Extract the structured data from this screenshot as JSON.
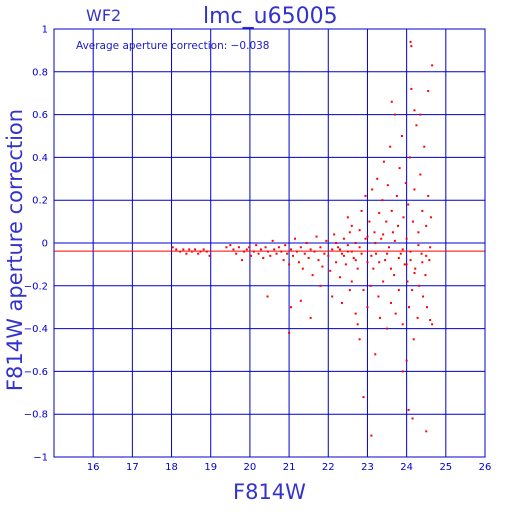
{
  "chart_data": {
    "type": "scatter",
    "title": "lmc_u65005",
    "panel_label": "WF2",
    "annotation": "Average aperture correction: −0.038",
    "xlabel": "F814W",
    "ylabel": "F814W aperture correction",
    "xlim": [
      15,
      26
    ],
    "ylim": [
      -1,
      1
    ],
    "x_ticks": [
      16,
      17,
      18,
      19,
      20,
      21,
      22,
      23,
      24,
      25,
      26
    ],
    "y_ticks": [
      1,
      0.8,
      0.6,
      0.4,
      0.2,
      0,
      -0.2,
      -0.4,
      -0.6,
      -0.8,
      -1
    ],
    "y_tick_labels": [
      "1",
      "0.8",
      "0.6",
      "0.4",
      "0.2",
      "0",
      "−0.2",
      "−0.4",
      "−0.6",
      "−0.8",
      "−1"
    ],
    "grid": true,
    "average_line": -0.038,
    "zero_line": 0,
    "colors": {
      "axes": "#0000cc",
      "points": "#ff0000",
      "average_line": "#ff0000",
      "zero_line": "#0000cc"
    },
    "points": [
      [
        18.03,
        -0.02
      ],
      [
        18.12,
        -0.03
      ],
      [
        18.22,
        -0.04
      ],
      [
        18.3,
        -0.03
      ],
      [
        18.38,
        -0.05
      ],
      [
        18.45,
        -0.03
      ],
      [
        18.52,
        -0.04
      ],
      [
        18.6,
        -0.03
      ],
      [
        18.68,
        -0.05
      ],
      [
        18.74,
        -0.04
      ],
      [
        18.82,
        -0.03
      ],
      [
        18.9,
        -0.04
      ],
      [
        18.97,
        -0.06
      ],
      [
        19.4,
        -0.02
      ],
      [
        19.5,
        -0.01
      ],
      [
        19.58,
        -0.03
      ],
      [
        19.65,
        -0.05
      ],
      [
        19.72,
        -0.02
      ],
      [
        19.8,
        -0.08
      ],
      [
        19.85,
        -0.04
      ],
      [
        19.92,
        -0.03
      ],
      [
        19.98,
        -0.02
      ],
      [
        20.03,
        -0.06
      ],
      [
        20.1,
        -0.04
      ],
      [
        20.16,
        -0.01
      ],
      [
        20.22,
        -0.05
      ],
      [
        20.28,
        -0.03
      ],
      [
        20.34,
        -0.07
      ],
      [
        20.4,
        -0.02
      ],
      [
        20.46,
        -0.04
      ],
      [
        20.52,
        -0.06
      ],
      [
        20.58,
        0.01
      ],
      [
        20.62,
        -0.03
      ],
      [
        20.68,
        -0.05
      ],
      [
        20.74,
        -0.02
      ],
      [
        20.8,
        -0.04
      ],
      [
        20.86,
        -0.08
      ],
      [
        20.9,
        -0.01
      ],
      [
        20.95,
        -0.05
      ],
      [
        21.0,
        -0.1
      ],
      [
        21.05,
        -0.03
      ],
      [
        21.1,
        -0.06
      ],
      [
        21.15,
        0.02
      ],
      [
        21.2,
        -0.04
      ],
      [
        21.25,
        -0.09
      ],
      [
        21.3,
        -0.02
      ],
      [
        21.35,
        -0.12
      ],
      [
        21.4,
        -0.05
      ],
      [
        21.45,
        0.0
      ],
      [
        21.5,
        -0.07
      ],
      [
        21.55,
        -0.03
      ],
      [
        21.6,
        -0.15
      ],
      [
        21.65,
        -0.04
      ],
      [
        21.7,
        0.03
      ],
      [
        21.75,
        -0.08
      ],
      [
        21.8,
        -0.02
      ],
      [
        21.85,
        -0.11
      ],
      [
        21.9,
        -0.05
      ],
      [
        21.95,
        0.01
      ],
      [
        22.0,
        -0.06
      ],
      [
        22.05,
        -0.13
      ],
      [
        22.1,
        -0.03
      ],
      [
        22.15,
        0.04
      ],
      [
        22.2,
        -0.09
      ],
      [
        22.25,
        -0.02
      ],
      [
        22.3,
        -0.16
      ],
      [
        22.35,
        -0.05
      ],
      [
        22.4,
        0.02
      ],
      [
        22.45,
        -0.1
      ],
      [
        22.5,
        -0.04
      ],
      [
        22.55,
        0.05
      ],
      [
        22.6,
        -0.18
      ],
      [
        22.65,
        -0.07
      ],
      [
        22.7,
        0.0
      ],
      [
        22.75,
        -0.12
      ],
      [
        22.8,
        0.06
      ],
      [
        22.85,
        -0.05
      ],
      [
        22.9,
        -0.22
      ],
      [
        22.95,
        0.02
      ],
      [
        23.0,
        -0.09
      ],
      [
        20.45,
        -0.25
      ],
      [
        21.05,
        -0.3
      ],
      [
        21.0,
        -0.42
      ],
      [
        21.3,
        -0.27
      ],
      [
        21.55,
        -0.35
      ],
      [
        21.8,
        -0.2
      ],
      [
        22.1,
        -0.25
      ],
      [
        22.35,
        -0.28
      ],
      [
        22.55,
        -0.22
      ],
      [
        22.7,
        -0.33
      ],
      [
        22.75,
        -0.38
      ],
      [
        22.8,
        -0.45
      ],
      [
        22.5,
        0.12
      ],
      [
        22.6,
        0.08
      ],
      [
        22.85,
        0.15
      ],
      [
        22.95,
        0.22
      ],
      [
        23.0,
        -0.3
      ],
      [
        23.05,
        0.1
      ],
      [
        23.08,
        -0.2
      ],
      [
        23.12,
        0.25
      ],
      [
        23.15,
        -0.12
      ],
      [
        23.18,
        0.05
      ],
      [
        23.22,
        -0.05
      ],
      [
        23.25,
        0.3
      ],
      [
        23.28,
        -0.25
      ],
      [
        23.3,
        0.14
      ],
      [
        23.32,
        -0.35
      ],
      [
        23.35,
        0.02
      ],
      [
        23.38,
        0.2
      ],
      [
        23.4,
        -0.18
      ],
      [
        23.42,
        0.38
      ],
      [
        23.45,
        -0.08
      ],
      [
        23.48,
        0.1
      ],
      [
        23.5,
        -0.4
      ],
      [
        23.52,
        0.27
      ],
      [
        23.55,
        -0.02
      ],
      [
        23.58,
        0.45
      ],
      [
        23.6,
        -0.28
      ],
      [
        23.62,
        0.15
      ],
      [
        23.65,
        0.05
      ],
      [
        23.68,
        -0.15
      ],
      [
        23.7,
        0.6
      ],
      [
        23.72,
        -0.33
      ],
      [
        23.75,
        0.22
      ],
      [
        23.78,
        0.08
      ],
      [
        23.8,
        -0.22
      ],
      [
        23.82,
        0.35
      ],
      [
        23.85,
        -0.05
      ],
      [
        23.88,
        0.5
      ],
      [
        23.9,
        -0.38
      ],
      [
        23.92,
        0.12
      ],
      [
        23.95,
        -0.1
      ],
      [
        23.98,
        0.28
      ],
      [
        24.0,
        -0.55
      ],
      [
        24.0,
        0.02
      ],
      [
        24.02,
        -0.18
      ],
      [
        24.04,
        0.18
      ],
      [
        24.06,
        -0.3
      ],
      [
        24.08,
        0.4
      ],
      [
        24.1,
        -0.08
      ],
      [
        24.12,
        0.72
      ],
      [
        24.14,
        -0.22
      ],
      [
        24.16,
        0.1
      ],
      [
        24.18,
        -0.45
      ],
      [
        24.2,
        0.25
      ],
      [
        24.22,
        -0.12
      ],
      [
        24.25,
        0.55
      ],
      [
        24.28,
        -0.35
      ],
      [
        24.3,
        0.05
      ],
      [
        24.32,
        -0.2
      ],
      [
        24.35,
        0.32
      ],
      [
        24.38,
        -0.05
      ],
      [
        24.4,
        0.15
      ],
      [
        24.42,
        -0.25
      ],
      [
        24.45,
        0.45
      ],
      [
        24.48,
        -0.15
      ],
      [
        24.5,
        0.08
      ],
      [
        24.52,
        -0.3
      ],
      [
        24.55,
        0.22
      ],
      [
        24.58,
        -0.08
      ],
      [
        24.6,
        -0.36
      ],
      [
        24.62,
        0.12
      ],
      [
        24.65,
        -0.38
      ],
      [
        24.1,
        0.94
      ],
      [
        24.12,
        0.92
      ],
      [
        24.65,
        0.83
      ],
      [
        24.55,
        0.71
      ],
      [
        24.2,
        0.62
      ],
      [
        24.35,
        0.6
      ],
      [
        23.62,
        0.66
      ],
      [
        24.5,
        -0.88
      ],
      [
        24.15,
        -0.82
      ],
      [
        23.1,
        -0.9
      ],
      [
        22.9,
        -0.72
      ],
      [
        23.2,
        -0.52
      ],
      [
        24.05,
        -0.78
      ],
      [
        23.9,
        -0.6
      ],
      [
        22.2,
        0.0
      ],
      [
        22.3,
        -0.03
      ],
      [
        22.4,
        -0.06
      ],
      [
        22.5,
        -0.01
      ],
      [
        22.6,
        -0.04
      ],
      [
        22.7,
        -0.08
      ],
      [
        22.8,
        -0.02
      ],
      [
        23.0,
        0.03
      ],
      [
        23.1,
        -0.06
      ],
      [
        23.2,
        0.0
      ],
      [
        23.3,
        -0.09
      ],
      [
        23.4,
        0.04
      ],
      [
        23.5,
        -0.05
      ],
      [
        23.6,
        -0.12
      ],
      [
        23.7,
        0.01
      ],
      [
        23.8,
        -0.07
      ],
      [
        23.9,
        -0.03
      ],
      [
        24.0,
        -0.1
      ],
      [
        24.1,
        -0.04
      ],
      [
        24.2,
        -0.14
      ],
      [
        24.3,
        -0.01
      ],
      [
        24.4,
        -0.09
      ],
      [
        24.5,
        -0.06
      ],
      [
        24.6,
        -0.02
      ]
    ]
  }
}
